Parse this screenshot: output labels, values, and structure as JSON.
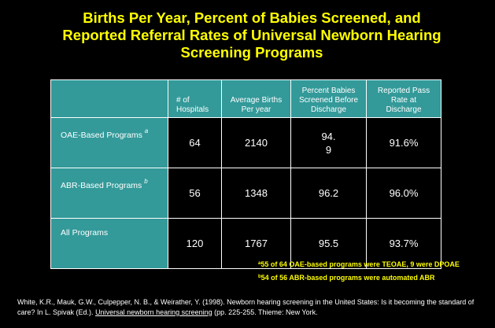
{
  "title": {
    "line1": "Births Per Year, Percent of Babies Screened, and",
    "line2": "Reported Referral Rates of Universal Newborn Hearing",
    "line3": "Screening Programs"
  },
  "table": {
    "headers": {
      "hospitals_1": "# of",
      "hospitals_2": "Hospitals",
      "births_1": "Average Births",
      "births_2": "Per year",
      "screened_1": "Percent Babies",
      "screened_2": "Screened Before",
      "screened_3": "Discharge",
      "pass_1": "Reported Pass",
      "pass_2": "Rate at",
      "pass_3": "Discharge"
    },
    "rows": [
      {
        "label": "OAE-Based Programs",
        "sup": "a",
        "hospitals": "64",
        "births": "2140",
        "screened_1": "94.",
        "screened_2": "9",
        "pass": "91.6%"
      },
      {
        "label": "ABR-Based Programs",
        "sup": "b",
        "hospitals": "56",
        "births": "1348",
        "screened": "96.2",
        "pass": "96.0%"
      },
      {
        "label": "All Programs",
        "hospitals": "120",
        "births": "1767",
        "screened": "95.5",
        "pass": "93.7%"
      }
    ]
  },
  "footnotes": {
    "a_mark": "a",
    "a_text": "55 of 64 OAE-based programs were TEOAE, 9 were DPOAE",
    "b_mark": "b",
    "b_text": "54 of 56 ABR-based programs were automated ABR"
  },
  "citation": {
    "part1": "White, K.R., Mauk, G.W., Culpepper, N. B., & Weirather, Y. (1998). Newborn hearing screening in the United States: Is it becoming the standard of care? In L. Spivak (Ed.).",
    "book": "Universal newborn hearing screening",
    "part2": "(pp. 225-255. Thieme: New York."
  },
  "colors": {
    "background": "#000000",
    "title": "#ffff00",
    "header_fill": "#339999",
    "text": "#ffffff"
  }
}
